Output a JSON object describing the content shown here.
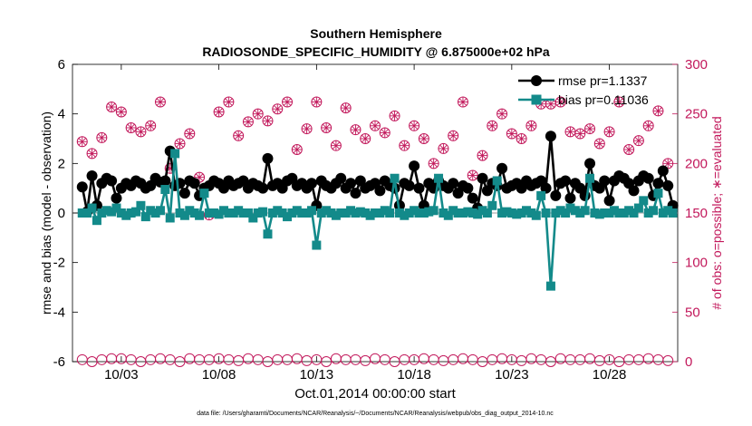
{
  "chart_data": {
    "type": "line",
    "title": "Southern Hemisphere",
    "subtitle": "RADIOSONDE_SPECIFIC_HUMIDITY @ 6.875000e+02 hPa",
    "xlabel": "Oct.01,2014 00:00:00 start",
    "ylabel": "rmse and bias (model - observation)",
    "y2label": "# of obs: o=possible; ∗=evaluated",
    "footnote": "data file: /Users/gharamti/Documents/NCAR/Reanalysis/~/Documents/NCAR/Reanalysis/webpub/obs_diag_output_2014-10.nc",
    "xlim": [
      0.5,
      31.5
    ],
    "ylim": [
      -6,
      6
    ],
    "y2lim": [
      0,
      300
    ],
    "xticks": [
      3,
      8,
      13,
      18,
      23,
      28
    ],
    "xtick_labels": [
      "10/03",
      "10/08",
      "10/13",
      "10/18",
      "10/23",
      "10/28"
    ],
    "yticks": [
      -6,
      -4,
      -2,
      0,
      2,
      4,
      6
    ],
    "y2ticks": [
      0,
      50,
      100,
      150,
      200,
      250,
      300
    ],
    "legend_position": "top-right",
    "x": [
      1.0,
      1.25,
      1.5,
      1.75,
      2.0,
      2.25,
      2.5,
      2.75,
      3.0,
      3.25,
      3.5,
      3.75,
      4.0,
      4.25,
      4.5,
      4.75,
      5.0,
      5.25,
      5.5,
      5.75,
      6.0,
      6.25,
      6.5,
      6.75,
      7.0,
      7.25,
      7.5,
      7.75,
      8.0,
      8.25,
      8.5,
      8.75,
      9.0,
      9.25,
      9.5,
      9.75,
      10.0,
      10.25,
      10.5,
      10.75,
      11.0,
      11.25,
      11.5,
      11.75,
      12.0,
      12.25,
      12.5,
      12.75,
      13.0,
      13.25,
      13.5,
      13.75,
      14.0,
      14.25,
      14.5,
      14.75,
      15.0,
      15.25,
      15.5,
      15.75,
      16.0,
      16.25,
      16.5,
      16.75,
      17.0,
      17.25,
      17.5,
      17.75,
      18.0,
      18.25,
      18.5,
      18.75,
      19.0,
      19.25,
      19.5,
      19.75,
      20.0,
      20.25,
      20.5,
      20.75,
      21.0,
      21.25,
      21.5,
      21.75,
      22.0,
      22.25,
      22.5,
      22.75,
      23.0,
      23.25,
      23.5,
      23.75,
      24.0,
      24.25,
      24.5,
      24.75,
      25.0,
      25.25,
      25.5,
      25.75,
      26.0,
      26.25,
      26.5,
      26.75,
      27.0,
      27.25,
      27.5,
      27.75,
      28.0,
      28.25,
      28.5,
      28.75,
      29.0,
      29.25,
      29.5,
      29.75,
      30.0,
      30.25,
      30.5,
      30.75,
      31.0,
      31.25
    ],
    "series": [
      {
        "name": "rmse",
        "legend_label": "rmse pr=1.1337",
        "color": "#000000",
        "marker": "circle",
        "axis": "left",
        "values": [
          1.05,
          0.05,
          1.5,
          0.3,
          1.2,
          1.4,
          1.3,
          0.6,
          1.0,
          1.2,
          1.1,
          1.3,
          1.2,
          1.0,
          1.1,
          1.4,
          1.25,
          1.3,
          2.5,
          1.1,
          1.2,
          0.8,
          1.3,
          1.2,
          0.7,
          1.0,
          1.1,
          1.3,
          1.2,
          1.0,
          1.3,
          1.1,
          1.2,
          1.3,
          1.0,
          1.2,
          1.1,
          1.0,
          2.2,
          1.1,
          1.2,
          1.0,
          1.3,
          1.4,
          1.1,
          1.2,
          1.0,
          1.2,
          0.3,
          1.3,
          1.1,
          1.0,
          1.2,
          1.4,
          1.0,
          1.2,
          0.8,
          1.3,
          1.0,
          1.1,
          1.2,
          0.9,
          1.3,
          1.1,
          1.0,
          0.3,
          1.2,
          1.1,
          1.9,
          1.0,
          0.3,
          1.2,
          1.0,
          1.3,
          1.1,
          1.0,
          1.2,
          0.8,
          1.1,
          1.0,
          0.6,
          0.2,
          1.4,
          0.9,
          1.2,
          1.1,
          1.8,
          1.0,
          1.1,
          1.2,
          1.0,
          1.3,
          1.1,
          1.2,
          1.3,
          1.0,
          3.1,
          0.7,
          1.2,
          1.3,
          0.6,
          1.2,
          1.0,
          0.7,
          2.0,
          1.1,
          1.0,
          1.3,
          0.5,
          1.3,
          1.5,
          1.4,
          1.2,
          0.9,
          1.3,
          1.5,
          1.4,
          0.7,
          1.2,
          1.7,
          1.1,
          0.3
        ]
      },
      {
        "name": "bias",
        "legend_label": "bias pr=0.11036",
        "color": "#138a8a",
        "marker": "square",
        "axis": "left",
        "values": [
          0.0,
          0.0,
          0.2,
          -0.3,
          0.0,
          0.1,
          0.05,
          0.2,
          0.0,
          -0.1,
          0.0,
          0.05,
          0.3,
          -0.15,
          0.1,
          0.0,
          0.1,
          0.95,
          -0.2,
          2.4,
          0.0,
          -0.1,
          0.1,
          0.0,
          -0.1,
          0.8,
          0.0,
          0.0,
          -0.05,
          0.1,
          0.0,
          0.0,
          0.1,
          0.0,
          0.0,
          -0.2,
          0.0,
          0.05,
          -0.85,
          0.0,
          0.1,
          0.0,
          -0.15,
          0.0,
          0.1,
          0.0,
          0.0,
          0.1,
          -1.3,
          0.0,
          0.1,
          0.0,
          -0.1,
          0.0,
          0.0,
          0.1,
          0.0,
          0.05,
          0.0,
          -0.1,
          0.0,
          0.0,
          0.1,
          0.0,
          1.4,
          0.0,
          -0.1,
          0.0,
          0.1,
          0.0,
          0.0,
          0.05,
          0.1,
          1.4,
          0.0,
          -0.1,
          0.1,
          0.0,
          0.0,
          0.05,
          0.0,
          -0.05,
          0.1,
          0.0,
          0.3,
          1.3,
          0.0,
          0.05,
          0.0,
          -0.05,
          0.0,
          0.1,
          0.0,
          -0.1,
          0.7,
          0.0,
          -2.95,
          0.0,
          0.1,
          0.0,
          0.2,
          0.1,
          0.0,
          0.1,
          1.4,
          0.0,
          -0.05,
          0.0,
          0.0,
          0.1,
          0.0,
          0.0,
          0.1,
          0.0,
          0.2,
          0.5,
          0.0,
          0.1,
          0.8,
          0.0,
          0.1,
          0.0
        ]
      },
      {
        "name": "obs possible",
        "color": "#c2185b",
        "marker": "circle-open",
        "axis": "right",
        "x": [
          1,
          1.5,
          2,
          2.5,
          3,
          3.5,
          4,
          4.5,
          5,
          5.5,
          6,
          6.5,
          7,
          7.5,
          8,
          8.5,
          9,
          9.5,
          10,
          10.5,
          11,
          11.5,
          12,
          12.5,
          13,
          13.5,
          14,
          14.5,
          15,
          15.5,
          16,
          16.5,
          17,
          17.5,
          18,
          18.5,
          19,
          19.5,
          20,
          20.5,
          21,
          21.5,
          22,
          22.5,
          23,
          23.5,
          24,
          24.5,
          25,
          25.5,
          26,
          26.5,
          27,
          27.5,
          28,
          28.5,
          29,
          29.5,
          30,
          30.5,
          31
        ],
        "values": [
          2,
          0,
          2,
          3,
          3,
          2,
          0,
          2,
          3,
          2,
          0,
          3,
          2,
          2,
          3,
          2,
          1,
          3,
          2,
          0,
          2,
          2,
          3,
          1,
          2,
          0,
          3,
          2,
          2,
          1,
          3,
          2,
          0,
          2,
          2,
          3,
          2,
          1,
          2,
          3,
          2,
          0,
          2,
          3,
          2,
          1,
          3,
          2,
          0,
          3,
          2,
          2,
          3,
          1,
          2,
          0,
          2,
          2,
          3,
          2,
          1
        ]
      },
      {
        "name": "obs evaluated",
        "color": "#c2185b",
        "marker": "asterisk",
        "axis": "right",
        "x": [
          1,
          1.5,
          2,
          2.5,
          3,
          3.5,
          4,
          4.5,
          5,
          5.5,
          6,
          6.5,
          7,
          7.5,
          8,
          8.5,
          9,
          9.5,
          10,
          10.5,
          11,
          11.5,
          12,
          12.5,
          13,
          13.5,
          14,
          14.5,
          15,
          15.5,
          16,
          16.5,
          17,
          17.5,
          18,
          18.5,
          19,
          19.5,
          20,
          20.5,
          21,
          21.5,
          22,
          22.5,
          23,
          23.5,
          24,
          24.5,
          25,
          25.5,
          26,
          26.5,
          27,
          27.5,
          28,
          28.5,
          29,
          29.5,
          30,
          30.5,
          31
        ],
        "values": [
          222,
          210,
          226,
          257,
          252,
          236,
          232,
          238,
          262,
          195,
          220,
          230,
          186,
          148,
          252,
          262,
          228,
          242,
          250,
          243,
          255,
          262,
          214,
          235,
          262,
          236,
          218,
          256,
          234,
          225,
          238,
          231,
          248,
          218,
          238,
          225,
          200,
          215,
          228,
          262,
          188,
          208,
          238,
          250,
          230,
          225,
          238,
          260,
          260,
          262,
          232,
          230,
          235,
          220,
          232,
          262,
          214,
          223,
          238,
          253,
          200
        ]
      }
    ]
  }
}
